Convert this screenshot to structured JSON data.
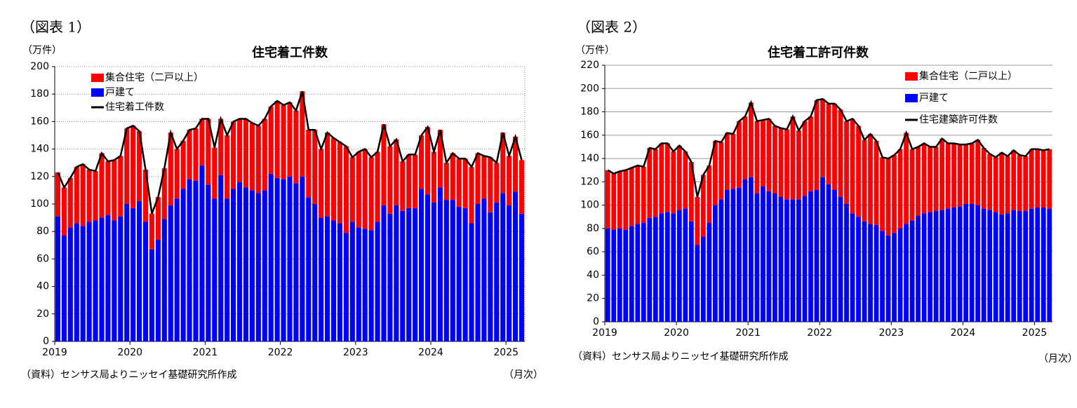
{
  "chart_data": [
    {
      "type": "bar",
      "figure": "（図表 1）",
      "title": "住宅着工件数",
      "unit": "（万件）",
      "xunit": "（月次）",
      "source": "（資料）センサス局よりニッセイ基礎研究所作成",
      "categories": [
        "2019",
        null,
        null,
        null,
        null,
        null,
        null,
        null,
        null,
        null,
        null,
        null,
        "2020",
        null,
        null,
        null,
        null,
        null,
        null,
        null,
        null,
        null,
        null,
        null,
        "2021",
        null,
        null,
        null,
        null,
        null,
        null,
        null,
        null,
        null,
        null,
        null,
        "2022",
        null,
        null,
        null,
        null,
        null,
        null,
        null,
        null,
        null,
        null,
        null,
        "2023",
        null,
        null,
        null,
        null,
        null,
        null,
        null,
        null,
        null,
        null,
        null,
        "2024",
        null,
        null,
        null,
        null,
        null,
        null,
        null,
        null,
        null,
        null,
        null,
        "2025",
        null,
        null
      ],
      "series": [
        {
          "name": "集合住宅（二戸以上）",
          "color": "#ff0000",
          "values": [
            32,
            35,
            36,
            41,
            45,
            38,
            36,
            47,
            39,
            44,
            44,
            55,
            60,
            51,
            38,
            26,
            31,
            37,
            53,
            36,
            35,
            36,
            38,
            34,
            48,
            37,
            41,
            46,
            49,
            46,
            50,
            49,
            49,
            52,
            49,
            56,
            54,
            54,
            53,
            62,
            49,
            54,
            50,
            61,
            60,
            59,
            63,
            47,
            55,
            58,
            53,
            51,
            59,
            49,
            48,
            36,
            39,
            39,
            39,
            49,
            37,
            42,
            27,
            34,
            35,
            36,
            41,
            37,
            31,
            40,
            29,
            44,
            36,
            40,
            39
          ]
        },
        {
          "name": "戸建て",
          "color": "#0000ff",
          "values": [
            91,
            77,
            83,
            86,
            84,
            87,
            88,
            90,
            92,
            88,
            91,
            100,
            97,
            102,
            87,
            67,
            74,
            89,
            99,
            104,
            111,
            118,
            117,
            128,
            114,
            104,
            121,
            104,
            111,
            116,
            112,
            110,
            108,
            110,
            122,
            119,
            118,
            120,
            115,
            120,
            105,
            100,
            90,
            91,
            88,
            86,
            79,
            87,
            83,
            82,
            81,
            87,
            99,
            93,
            99,
            95,
            97,
            97,
            111,
            107,
            101,
            112,
            103,
            103,
            98,
            97,
            86,
            100,
            104,
            94,
            101,
            108,
            99,
            109,
            93
          ]
        },
        {
          "name": "住宅着工件数",
          "color": "#000000",
          "type": "line",
          "values": [
            123,
            112,
            119,
            127,
            129,
            125,
            124,
            137,
            131,
            132,
            135,
            155,
            157,
            153,
            125,
            93,
            105,
            126,
            152,
            140,
            146,
            154,
            155,
            162,
            162,
            141,
            162,
            150,
            160,
            162,
            162,
            159,
            157,
            162,
            171,
            175,
            172,
            174,
            168,
            182,
            154,
            154,
            140,
            152,
            148,
            145,
            142,
            134,
            138,
            140,
            134,
            138,
            158,
            142,
            147,
            131,
            136,
            136,
            150,
            156,
            138,
            154,
            130,
            137,
            133,
            133,
            127,
            137,
            135,
            134,
            130,
            152,
            135,
            149,
            132
          ]
        }
      ],
      "ylim": [
        0,
        200
      ],
      "yticks": [
        0,
        20,
        40,
        60,
        80,
        100,
        120,
        140,
        160,
        180,
        200
      ],
      "grid": "dotted",
      "legend": "upper left"
    },
    {
      "type": "bar",
      "figure": "（図表 2）",
      "title": "住宅着工許可件数",
      "unit": "（万件）",
      "xunit": "（月次）",
      "source": "（資料）センサス局よりニッセイ基礎研究所作成",
      "categories": [
        "2019",
        null,
        null,
        null,
        null,
        null,
        null,
        null,
        null,
        null,
        null,
        null,
        "2020",
        null,
        null,
        null,
        null,
        null,
        null,
        null,
        null,
        null,
        null,
        null,
        "2021",
        null,
        null,
        null,
        null,
        null,
        null,
        null,
        null,
        null,
        null,
        null,
        "2022",
        null,
        null,
        null,
        null,
        null,
        null,
        null,
        null,
        null,
        null,
        null,
        "2023",
        null,
        null,
        null,
        null,
        null,
        null,
        null,
        null,
        null,
        null,
        null,
        "2024",
        null,
        null,
        null,
        null,
        null,
        null,
        null,
        null,
        null,
        null,
        null,
        "2025",
        null,
        null
      ],
      "series": [
        {
          "name": "集合住宅（二戸以上）",
          "color": "#ff0000",
          "values": [
            50,
            48,
            49,
            51,
            50,
            50,
            48,
            60,
            58,
            60,
            59,
            53,
            55,
            49,
            51,
            41,
            53,
            49,
            55,
            49,
            49,
            47,
            57,
            54,
            64,
            62,
            57,
            62,
            58,
            59,
            60,
            71,
            59,
            64,
            64,
            77,
            67,
            69,
            74,
            75,
            71,
            81,
            78,
            70,
            77,
            72,
            63,
            66,
            67,
            68,
            78,
            61,
            59,
            60,
            56,
            55,
            61,
            56,
            55,
            53,
            51,
            52,
            56,
            52,
            48,
            47,
            53,
            49,
            51,
            48,
            47,
            51,
            50,
            49,
            51
          ]
        },
        {
          "name": "戸建て",
          "color": "#0000ff",
          "values": [
            80,
            79,
            80,
            79,
            82,
            84,
            85,
            89,
            90,
            93,
            94,
            93,
            96,
            97,
            86,
            66,
            73,
            85,
            100,
            105,
            113,
            114,
            115,
            122,
            124,
            110,
            116,
            112,
            110,
            107,
            105,
            105,
            105,
            108,
            112,
            113,
            124,
            118,
            113,
            107,
            101,
            93,
            90,
            86,
            84,
            83,
            78,
            74,
            76,
            80,
            84,
            87,
            91,
            93,
            94,
            95,
            96,
            97,
            98,
            99,
            101,
            101,
            100,
            97,
            96,
            94,
            92,
            93,
            96,
            95,
            95,
            97,
            98,
            98,
            97
          ]
        },
        {
          "name": "住宅建築許可件数",
          "color": "#000000",
          "type": "line",
          "values": [
            130,
            127,
            129,
            130,
            132,
            134,
            133,
            149,
            148,
            153,
            153,
            146,
            151,
            146,
            137,
            107,
            126,
            134,
            155,
            154,
            162,
            161,
            172,
            176,
            188,
            172,
            173,
            174,
            168,
            166,
            165,
            176,
            164,
            172,
            176,
            190,
            191,
            187,
            187,
            182,
            172,
            174,
            168,
            156,
            161,
            155,
            141,
            140,
            143,
            148,
            162,
            148,
            150,
            153,
            150,
            150,
            157,
            153,
            153,
            152,
            152,
            153,
            156,
            149,
            144,
            141,
            145,
            142,
            147,
            143,
            142,
            148,
            148,
            147,
            148
          ]
        }
      ],
      "ylim": [
        0,
        220
      ],
      "yticks": [
        0,
        20,
        40,
        60,
        80,
        100,
        120,
        140,
        160,
        180,
        200,
        220
      ],
      "grid": "solid",
      "legend": "upper right"
    }
  ]
}
